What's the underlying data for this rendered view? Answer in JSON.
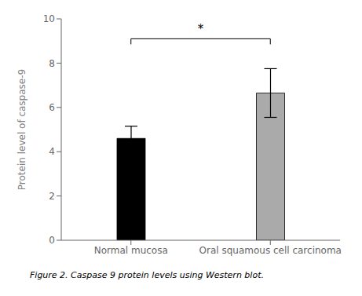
{
  "chart_data": {
    "type": "bar",
    "categories": [
      "Normal mucosa",
      "Oral squamous cell carcinoma"
    ],
    "values": [
      4.6,
      6.65
    ],
    "errors": [
      0.55,
      1.1
    ],
    "colors": [
      "#000000",
      "#aaaaaa"
    ],
    "ylim": [
      0,
      10
    ],
    "yticks": [
      0,
      2,
      4,
      6,
      8,
      10
    ],
    "ylabel": "Protein level of caspase-9",
    "grid": false,
    "annotations": [
      {
        "text": "*",
        "y": 9.35
      }
    ],
    "bracket": {
      "y": 9.1,
      "drop": 0.25
    },
    "caption": "Figure 2. Caspase 9 protein levels using Western blot."
  }
}
